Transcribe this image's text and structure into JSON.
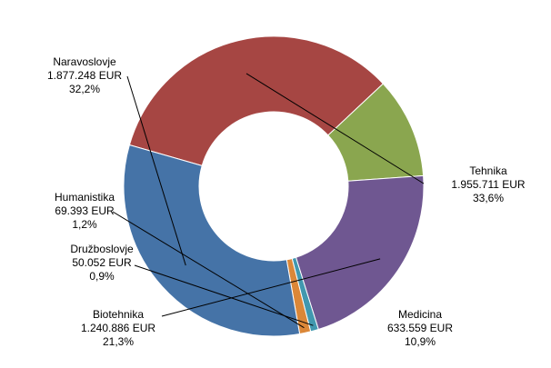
{
  "chart_data": {
    "type": "pie",
    "style": "donut",
    "title": "",
    "currency": "EUR",
    "slices": [
      {
        "name": "Tehnika",
        "value": 1955711,
        "value_label": "1.955.711 EUR",
        "percent": 33.6,
        "percent_label": "33,6%",
        "color": "#a64643"
      },
      {
        "name": "Medicina",
        "value": 633559,
        "value_label": "633.559 EUR",
        "percent": 10.9,
        "percent_label": "10,9%",
        "color": "#8aa64f"
      },
      {
        "name": "Biotehnika",
        "value": 1240886,
        "value_label": "1.240.886 EUR",
        "percent": 21.3,
        "percent_label": "21,3%",
        "color": "#6f5791"
      },
      {
        "name": "Družboslovje",
        "value": 50052,
        "value_label": "50.052 EUR",
        "percent": 0.9,
        "percent_label": "0,9%",
        "color": "#4198af"
      },
      {
        "name": "Humanistika",
        "value": 69393,
        "value_label": "69.393 EUR",
        "percent": 1.2,
        "percent_label": "1,2%",
        "color": "#db8738"
      },
      {
        "name": "Naravoslovje",
        "value": 1877248,
        "value_label": "1.877.248 EUR",
        "percent": 32.2,
        "percent_label": "32,2%",
        "color": "#4573a7"
      }
    ]
  }
}
